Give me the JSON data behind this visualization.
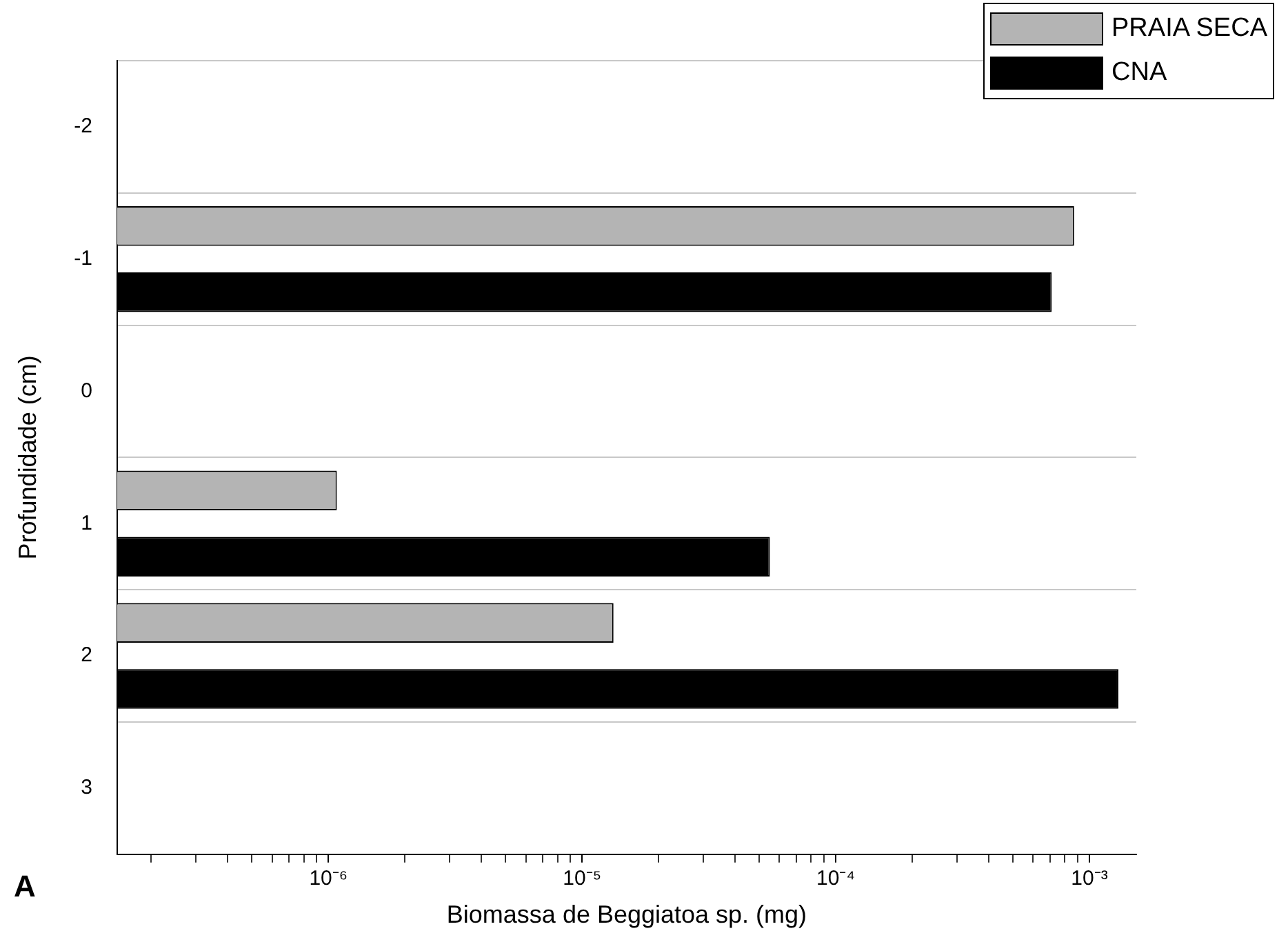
{
  "chart_data": {
    "type": "bar",
    "orientation": "horizontal",
    "log": "x",
    "xlabel": "Biomassa de Beggiatoa sp. (mg)",
    "ylabel": "Profundidade (cm)",
    "annotations": [
      "A"
    ],
    "categories": [
      "-2",
      "-1",
      "0",
      "1",
      "2",
      "3"
    ],
    "series": [
      {
        "name": "PRAIA SECA",
        "color": "#b4b4b4",
        "values": [
          null,
          0.00087,
          null,
          1.08e-06,
          1.33e-05,
          null
        ]
      },
      {
        "name": "CNA",
        "color": "#000000",
        "values": [
          null,
          0.00071,
          null,
          5.5e-05,
          0.0013,
          null
        ]
      }
    ],
    "xlim": [
      1.47e-07,
      0.00153
    ],
    "xticks": [
      {
        "value": 2e-07,
        "label": null
      },
      {
        "value": 3e-07,
        "label": null
      },
      {
        "value": 4e-07,
        "label": null
      },
      {
        "value": 5e-07,
        "label": null
      },
      {
        "value": 6e-07,
        "label": null
      },
      {
        "value": 7e-07,
        "label": null
      },
      {
        "value": 8e-07,
        "label": null
      },
      {
        "value": 9e-07,
        "label": null
      },
      {
        "value": 1e-06,
        "label": "10⁻⁶"
      },
      {
        "value": 2e-06,
        "label": null
      },
      {
        "value": 3e-06,
        "label": null
      },
      {
        "value": 4e-06,
        "label": null
      },
      {
        "value": 5e-06,
        "label": null
      },
      {
        "value": 6e-06,
        "label": null
      },
      {
        "value": 7e-06,
        "label": null
      },
      {
        "value": 8e-06,
        "label": null
      },
      {
        "value": 9e-06,
        "label": null
      },
      {
        "value": 1e-05,
        "label": "10⁻⁵"
      },
      {
        "value": 2e-05,
        "label": null
      },
      {
        "value": 3e-05,
        "label": null
      },
      {
        "value": 4e-05,
        "label": null
      },
      {
        "value": 5e-05,
        "label": null
      },
      {
        "value": 6e-05,
        "label": null
      },
      {
        "value": 7e-05,
        "label": null
      },
      {
        "value": 8e-05,
        "label": null
      },
      {
        "value": 9e-05,
        "label": null
      },
      {
        "value": 0.0001,
        "label": "10⁻⁴"
      },
      {
        "value": 0.0002,
        "label": null
      },
      {
        "value": 0.0003,
        "label": null
      },
      {
        "value": 0.0004,
        "label": null
      },
      {
        "value": 0.0005,
        "label": null
      },
      {
        "value": 0.0006,
        "label": null
      },
      {
        "value": 0.0007,
        "label": null
      },
      {
        "value": 0.0008,
        "label": null
      },
      {
        "value": 0.0009,
        "label": null
      },
      {
        "value": 0.001,
        "label": "10⁻³"
      }
    ],
    "grid": "y",
    "legend": "top right"
  }
}
